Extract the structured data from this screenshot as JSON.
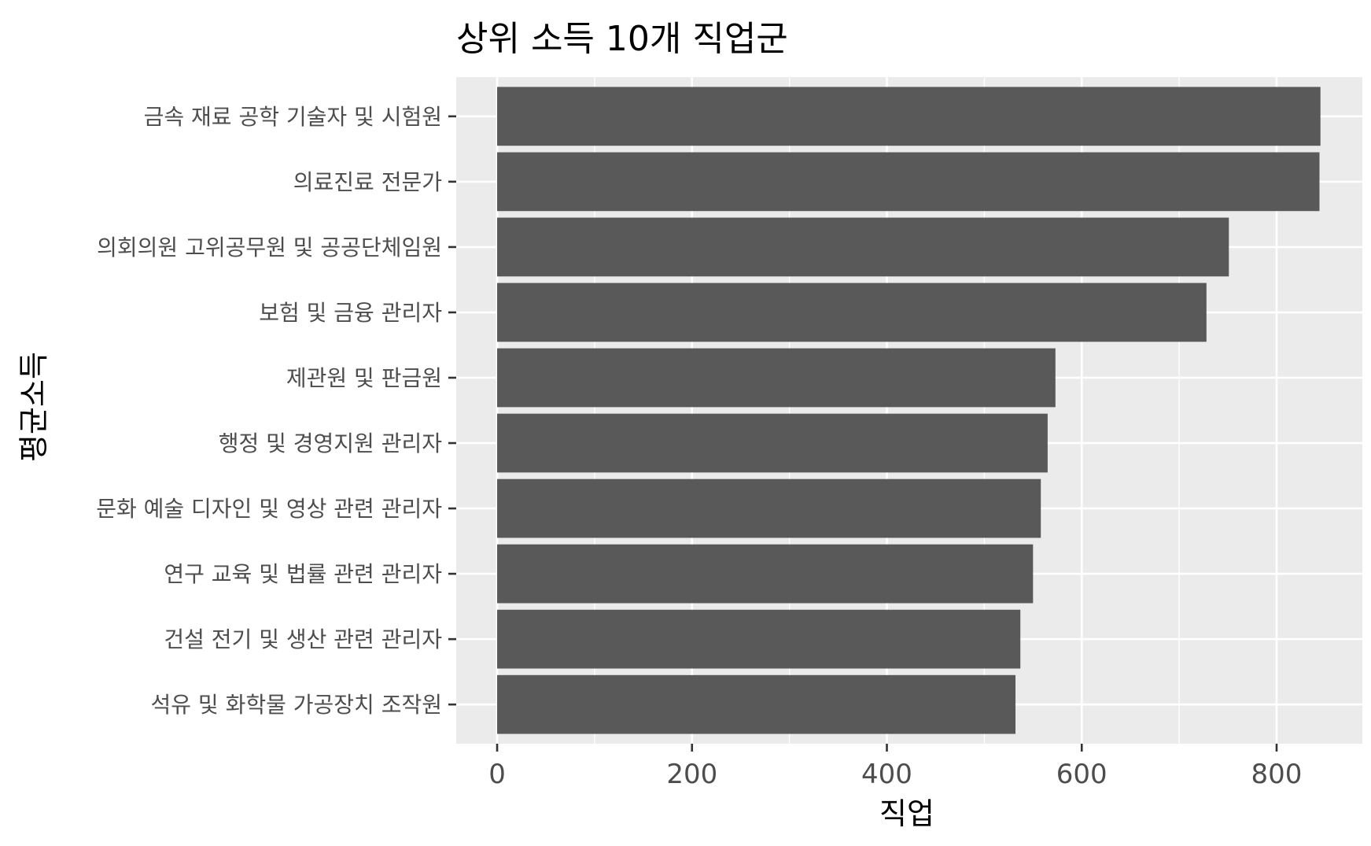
{
  "chart_data": {
    "type": "bar",
    "orientation": "horizontal",
    "title": "상위 소득 10개 직업군",
    "xlabel": "직업",
    "ylabel": "평균소득",
    "categories": [
      "금속 재료 공학 기술자 및 시험원",
      "의료진료 전문가",
      "의회의원 고위공무원 및 공공단체임원",
      "보험 및 금융 관리자",
      "제관원 및 판금원",
      "행정 및 경영지원 관리자",
      "문화 예술 디자인 및 영상 관련 관리자",
      "연구 교육 및 법률 관련 관리자",
      "건설 전기 및 생산 관련 관리자",
      "석유 및 화학물 가공장치 조작원"
    ],
    "values": [
      845,
      844,
      751,
      728,
      573,
      565,
      558,
      550,
      537,
      532
    ],
    "xlim": [
      -42,
      888
    ],
    "xticks": [
      0,
      200,
      400,
      600,
      800
    ],
    "grid": true,
    "bar_color": "#595959",
    "panel_color": "#ebebeb",
    "grid_color": "#ffffff"
  }
}
